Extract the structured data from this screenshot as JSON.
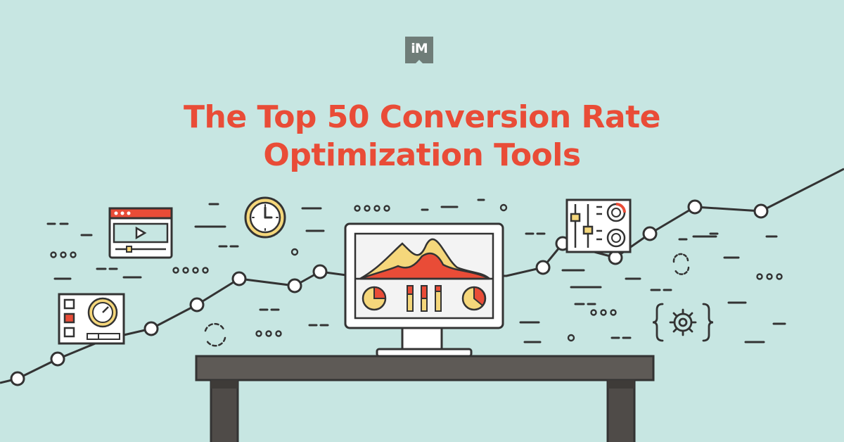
{
  "logo": {
    "text": "iM"
  },
  "title": {
    "line1": "The Top 50 Conversion Rate",
    "line2": "Optimization Tools"
  },
  "colors": {
    "background": "#c7e6e2",
    "title": "#e94c37",
    "line": "#333333",
    "accent_red": "#e94c37",
    "accent_yellow": "#f5d77b",
    "desk": "#5e5a56",
    "screen": "#f3f3f3"
  },
  "icons": [
    "video-player-icon",
    "clock-icon",
    "speedometer-panel-icon",
    "mixer-panel-icon",
    "gear-code-icon",
    "refresh-icon",
    "monitor-analytics-icon"
  ]
}
